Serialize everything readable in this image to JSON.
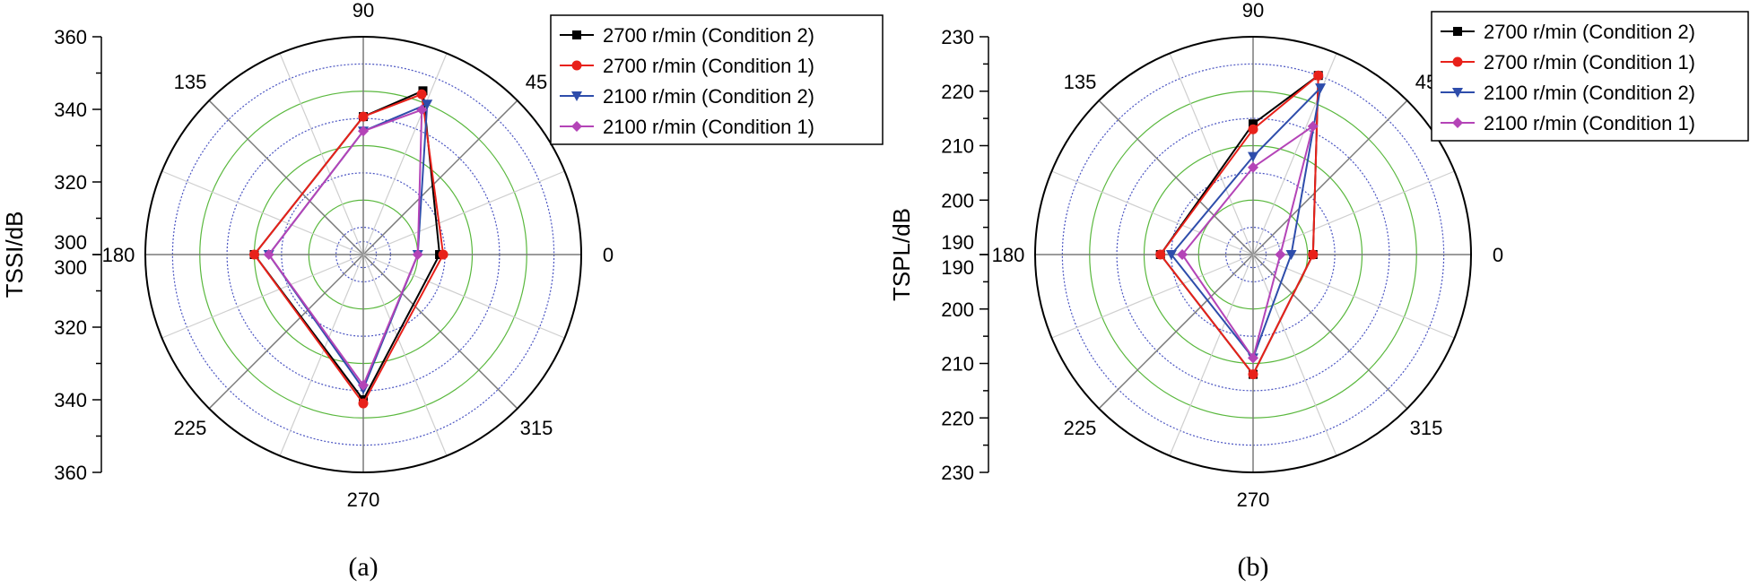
{
  "chart_data": [
    {
      "type": "radar",
      "panel_label": "(a)",
      "ylabel": "TSSI/dB",
      "radial_range": [
        300,
        360
      ],
      "radial_ticks": [
        300,
        320,
        340,
        360
      ],
      "angle_ticks": [
        0,
        45,
        90,
        135,
        180,
        225,
        270,
        315
      ],
      "angle_tick_labels": [
        "0",
        "45",
        "90",
        "135",
        "180",
        "225",
        "270",
        "315"
      ],
      "series": [
        {
          "name": "2700 r/min (Condition 2)",
          "color": "#000000",
          "marker": "square",
          "points": [
            {
              "angle": 0,
              "value": 321
            },
            {
              "angle": 70,
              "value": 348
            },
            {
              "angle": 90,
              "value": 338
            },
            {
              "angle": 180,
              "value": 330
            },
            {
              "angle": 270,
              "value": 340
            }
          ]
        },
        {
          "name": "2700 r/min (Condition 1)",
          "color": "#e8211a",
          "marker": "circle",
          "points": [
            {
              "angle": 0,
              "value": 322
            },
            {
              "angle": 70,
              "value": 347
            },
            {
              "angle": 90,
              "value": 338
            },
            {
              "angle": 180,
              "value": 330
            },
            {
              "angle": 270,
              "value": 341
            }
          ]
        },
        {
          "name": "2100 r/min (Condition 2)",
          "color": "#2e4dab",
          "marker": "triangle-down",
          "points": [
            {
              "angle": 0,
              "value": 315
            },
            {
              "angle": 67,
              "value": 345
            },
            {
              "angle": 90,
              "value": 334
            },
            {
              "angle": 180,
              "value": 326
            },
            {
              "angle": 270,
              "value": 337
            }
          ]
        },
        {
          "name": "2100 r/min (Condition 1)",
          "color": "#b444b7",
          "marker": "diamond",
          "points": [
            {
              "angle": 0,
              "value": 315
            },
            {
              "angle": 68,
              "value": 343
            },
            {
              "angle": 90,
              "value": 334
            },
            {
              "angle": 180,
              "value": 326
            },
            {
              "angle": 270,
              "value": 336
            }
          ]
        }
      ]
    },
    {
      "type": "radar",
      "panel_label": "(b)",
      "ylabel": "TSPL/dB",
      "radial_range": [
        190,
        230
      ],
      "radial_ticks": [
        190,
        200,
        210,
        220,
        230
      ],
      "angle_ticks": [
        0,
        45,
        90,
        135,
        180,
        225,
        270,
        315
      ],
      "angle_tick_labels": [
        "0",
        "45",
        "90",
        "135",
        "180",
        "225",
        "270",
        "315"
      ],
      "series": [
        {
          "name": "2700 r/min (Condition 2)",
          "color": "#000000",
          "marker": "square",
          "points": [
            {
              "angle": 0,
              "value": 201
            },
            {
              "angle": 70,
              "value": 225
            },
            {
              "angle": 90,
              "value": 214
            },
            {
              "angle": 180,
              "value": 207
            },
            {
              "angle": 270,
              "value": 212
            }
          ]
        },
        {
          "name": "2700 r/min (Condition 1)",
          "color": "#e8211a",
          "marker": "circle",
          "points": [
            {
              "angle": 0,
              "value": 201
            },
            {
              "angle": 70,
              "value": 225
            },
            {
              "angle": 90,
              "value": 213
            },
            {
              "angle": 180,
              "value": 207
            },
            {
              "angle": 270,
              "value": 212
            }
          ]
        },
        {
          "name": "2100 r/min (Condition 2)",
          "color": "#2e4dab",
          "marker": "triangle-down",
          "points": [
            {
              "angle": 0,
              "value": 197
            },
            {
              "angle": 68,
              "value": 223
            },
            {
              "angle": 90,
              "value": 208
            },
            {
              "angle": 180,
              "value": 205
            },
            {
              "angle": 270,
              "value": 209
            }
          ]
        },
        {
          "name": "2100 r/min (Condition 1)",
          "color": "#b444b7",
          "marker": "diamond",
          "points": [
            {
              "angle": 0,
              "value": 195
            },
            {
              "angle": 65,
              "value": 216
            },
            {
              "angle": 90,
              "value": 206
            },
            {
              "angle": 180,
              "value": 203
            },
            {
              "angle": 270,
              "value": 209
            }
          ]
        }
      ]
    }
  ]
}
